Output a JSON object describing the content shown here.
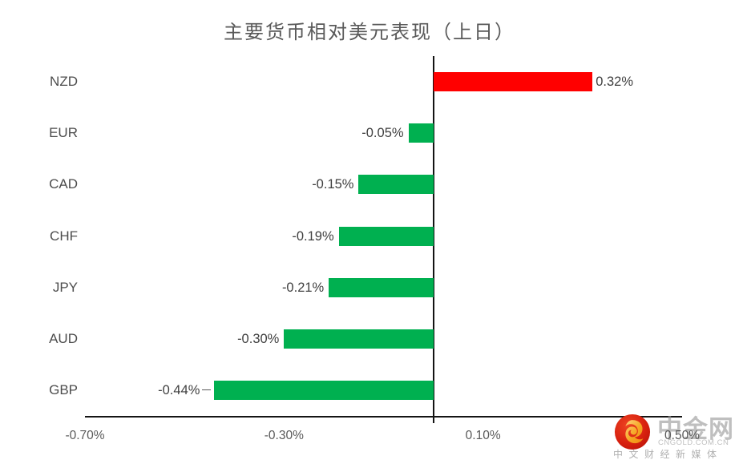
{
  "title": "主要货币相对美元表现（上日）",
  "colors": {
    "positive_bar": "#ff0000",
    "negative_bar": "#00b050",
    "axis_line": "#141414",
    "title_text": "#595959",
    "label_text": "#404040",
    "tick_text": "#595959",
    "logo_red": "#d7200f",
    "logo_gold": "#f5a623"
  },
  "chart_data": {
    "type": "bar",
    "orientation": "horizontal",
    "title": "主要货币相对美元表现（上日）",
    "categories": [
      "NZD",
      "EUR",
      "CAD",
      "CHF",
      "JPY",
      "AUD",
      "GBP"
    ],
    "values": [
      0.32,
      -0.05,
      -0.15,
      -0.19,
      -0.21,
      -0.3,
      -0.44
    ],
    "value_labels": [
      "0.32%",
      "-0.05%",
      "-0.15%",
      "-0.19%",
      "-0.21%",
      "-0.30%",
      "-0.44%"
    ],
    "label_leader": [
      false,
      false,
      false,
      false,
      false,
      false,
      true
    ],
    "xlim": [
      -0.7,
      0.5
    ],
    "x_ticks": [
      "-0.70%",
      "-0.30%",
      "0.10%",
      "0.50%"
    ],
    "x_tick_values": [
      -0.7,
      -0.3,
      0.1,
      0.5
    ],
    "xlabel": "",
    "ylabel": "",
    "grid": false,
    "legend": false,
    "value_label_position": "outside-end",
    "bar_color_positive": "#ff0000",
    "bar_color_negative": "#00b050"
  },
  "watermark": {
    "brand": "中金网",
    "domain": "CNGOLD.COM.CN",
    "tagline": "中文财经新媒体"
  }
}
